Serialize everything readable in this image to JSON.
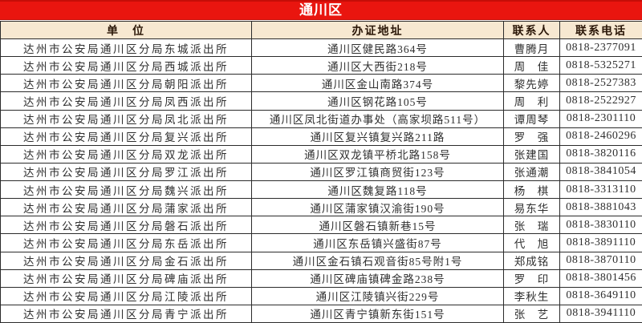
{
  "title": "通川区",
  "table": {
    "headers": [
      "单　位",
      "办证地址",
      "联系人",
      "联系电话"
    ],
    "rows": [
      {
        "unit": "达州市公安局通川区分局东城派出所",
        "address": "通川区健民路364号",
        "contact": "曹腾月",
        "phone": "0818-2377091"
      },
      {
        "unit": "达州市公安局通川区分局西城派出所",
        "address": "通川区大西街218号",
        "contact": "周　佳",
        "phone": "0818-5325271"
      },
      {
        "unit": "达州市公安局通川区分局朝阳派出所",
        "address": "通川区金山南路374号",
        "contact": "黎先婷",
        "phone": "0818-2527383"
      },
      {
        "unit": "达州市公安局通川区分局凤西派出所",
        "address": "通川区钢花路105号",
        "contact": "周　利",
        "phone": "0818-2522927"
      },
      {
        "unit": "达州市公安局通川区分局凤北派出所",
        "address": "通川区凤北街道办事处（高家坝路511号）",
        "contact": "谭周琴",
        "phone": "0818-2301110"
      },
      {
        "unit": "达州市公安局通川区分局复兴派出所",
        "address": "通川区复兴镇复兴路211路",
        "contact": "罗　强",
        "phone": "0818-2460296"
      },
      {
        "unit": "达州市公安局通川区分局双龙派出所",
        "address": "通川区双龙镇平桥北路158号",
        "contact": "张建国",
        "phone": "0818-3820116"
      },
      {
        "unit": "达州市公安局通川区分局罗江派出所",
        "address": "通川区罗江镇商贸街123号",
        "contact": "张通潮",
        "phone": "0818-3841054"
      },
      {
        "unit": "达州市公安局通川区分局魏兴派出所",
        "address": "通川区魏复路118号",
        "contact": "杨　棋",
        "phone": "0818-3313110"
      },
      {
        "unit": "达州市公安局通川区分局蒲家派出所",
        "address": "通川区蒲家镇汉渝街190号",
        "contact": "易东华",
        "phone": "0818-3881043"
      },
      {
        "unit": "达州市公安局通川区分局磐石派出所",
        "address": "通川区磐石镇新巷15号",
        "contact": "张　瑞",
        "phone": "0818-3830110"
      },
      {
        "unit": "达州市公安局通川区分局东岳派出所",
        "address": "通川区东岳镇兴盛街87号",
        "contact": "代　旭",
        "phone": "0818-3891110"
      },
      {
        "unit": "达州市公安局通川区分局金石派出所",
        "address": "通川区金石镇石观音街85号附1号",
        "contact": "郑成铭",
        "phone": "0818-3870110"
      },
      {
        "unit": "达州市公安局通川区分局碑庙派出所",
        "address": "通川区碑庙镇碑金路238号",
        "contact": "罗　印",
        "phone": "0818-3801456"
      },
      {
        "unit": "达州市公安局通川区分局江陵派出所",
        "address": "通川区江陵镇兴街229号",
        "contact": "李秋生",
        "phone": "0818-3649110"
      },
      {
        "unit": "达州市公安局通川区分局青宁派出所",
        "address": "通川区青宁镇新东街151号",
        "contact": "张　艺",
        "phone": "0818-3941110"
      }
    ]
  },
  "colors": {
    "title_bg": "#e9150f",
    "title_text": "#ffffff",
    "header_bg": "#f7e8d1",
    "header_text": "#2b1708",
    "border": "#2b2b2b",
    "body_text": "#2f2f2f"
  }
}
